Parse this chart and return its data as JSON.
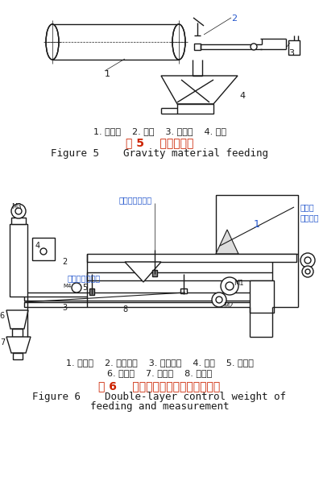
{
  "bg_color": "#ffffff",
  "fig_width": 3.96,
  "fig_height": 6.18,
  "dpi": 100,
  "fig5_caption_cn": "图 5    重力式供料",
  "fig5_caption_en": "Figure 5    Gravity material feeding",
  "fig5_labels": "1. 传送带    2. 刮板    3. 传感器    4. 漏斗",
  "fig6_caption_cn": "图 6    双料层控制称重式给料与计量",
  "fig6_caption_en_line1": "Figure 6    Double-layer control weight of",
  "fig6_caption_en_line2": "feeding and measurement",
  "fig6_labels_line1": "1. 储料仓    2. 主供料斗    3. 微供料斗    4. 量杯    5. 提升器",
  "fig6_labels_line2": "6. 缓冲斗    7. 称量斗    8. 传感器",
  "line_color": "#1a1a1a",
  "cn_caption_color": "#cc2200",
  "en_caption_color": "#000000",
  "blue_label_color": "#2255cc",
  "cn_fontsize": 10,
  "en_fontsize": 9,
  "label_fontsize": 8,
  "small_label_fontsize": 7
}
